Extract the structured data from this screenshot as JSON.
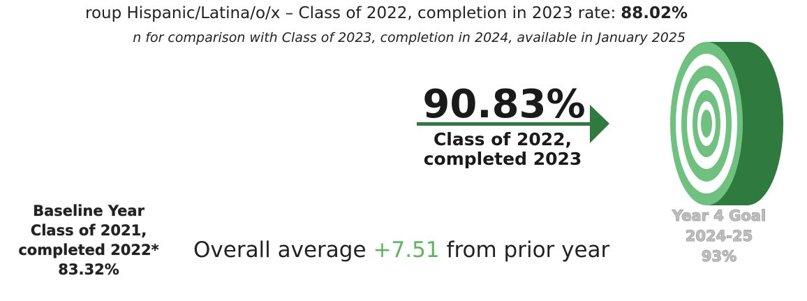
{
  "header": {
    "title_prefix": "roup Hispanic/Latina/o/x – Class of 2022, completion in 2023 rate:",
    "title_rate": "88.02%",
    "subtitle": "n for comparison with Class of 2023, completion in 2024, available in January 2025"
  },
  "current": {
    "rate": "90.83%",
    "label_lines": [
      "Class of 2022,",
      "completed 2023"
    ]
  },
  "baseline": {
    "lines": [
      "Baseline Year",
      "Class of 2021,",
      "completed 2022*",
      "83.32%"
    ]
  },
  "change": {
    "prefix": "Overall average",
    "value": "+7.51",
    "suffix": "from prior year"
  },
  "goal": {
    "lines": [
      "Year 4 Goal",
      "2024-25",
      "93%"
    ]
  }
}
